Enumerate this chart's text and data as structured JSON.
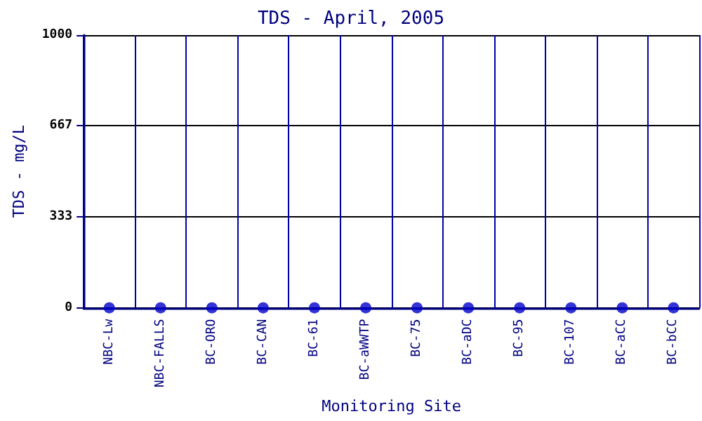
{
  "chart_data": {
    "type": "scatter",
    "title": "TDS - April, 2005",
    "xlabel": "Monitoring Site",
    "ylabel": "TDS - mg/L",
    "categories": [
      "NBC-Lw",
      "NBC-FALLS",
      "BC-ORO",
      "BC-CAN",
      "BC-61",
      "BC-aWWTP",
      "BC-75",
      "BC-aDC",
      "BC-95",
      "BC-107",
      "BC-aCC",
      "BC-bCC"
    ],
    "series": [
      {
        "color": "#0000cc",
        "values": [
          0,
          0,
          0,
          0,
          0,
          0,
          0,
          0,
          0,
          0,
          0,
          0
        ]
      }
    ],
    "ylim": [
      0,
      1000
    ],
    "yticks": [
      0,
      333,
      667,
      1000
    ],
    "grid": true,
    "marker": "circle"
  }
}
